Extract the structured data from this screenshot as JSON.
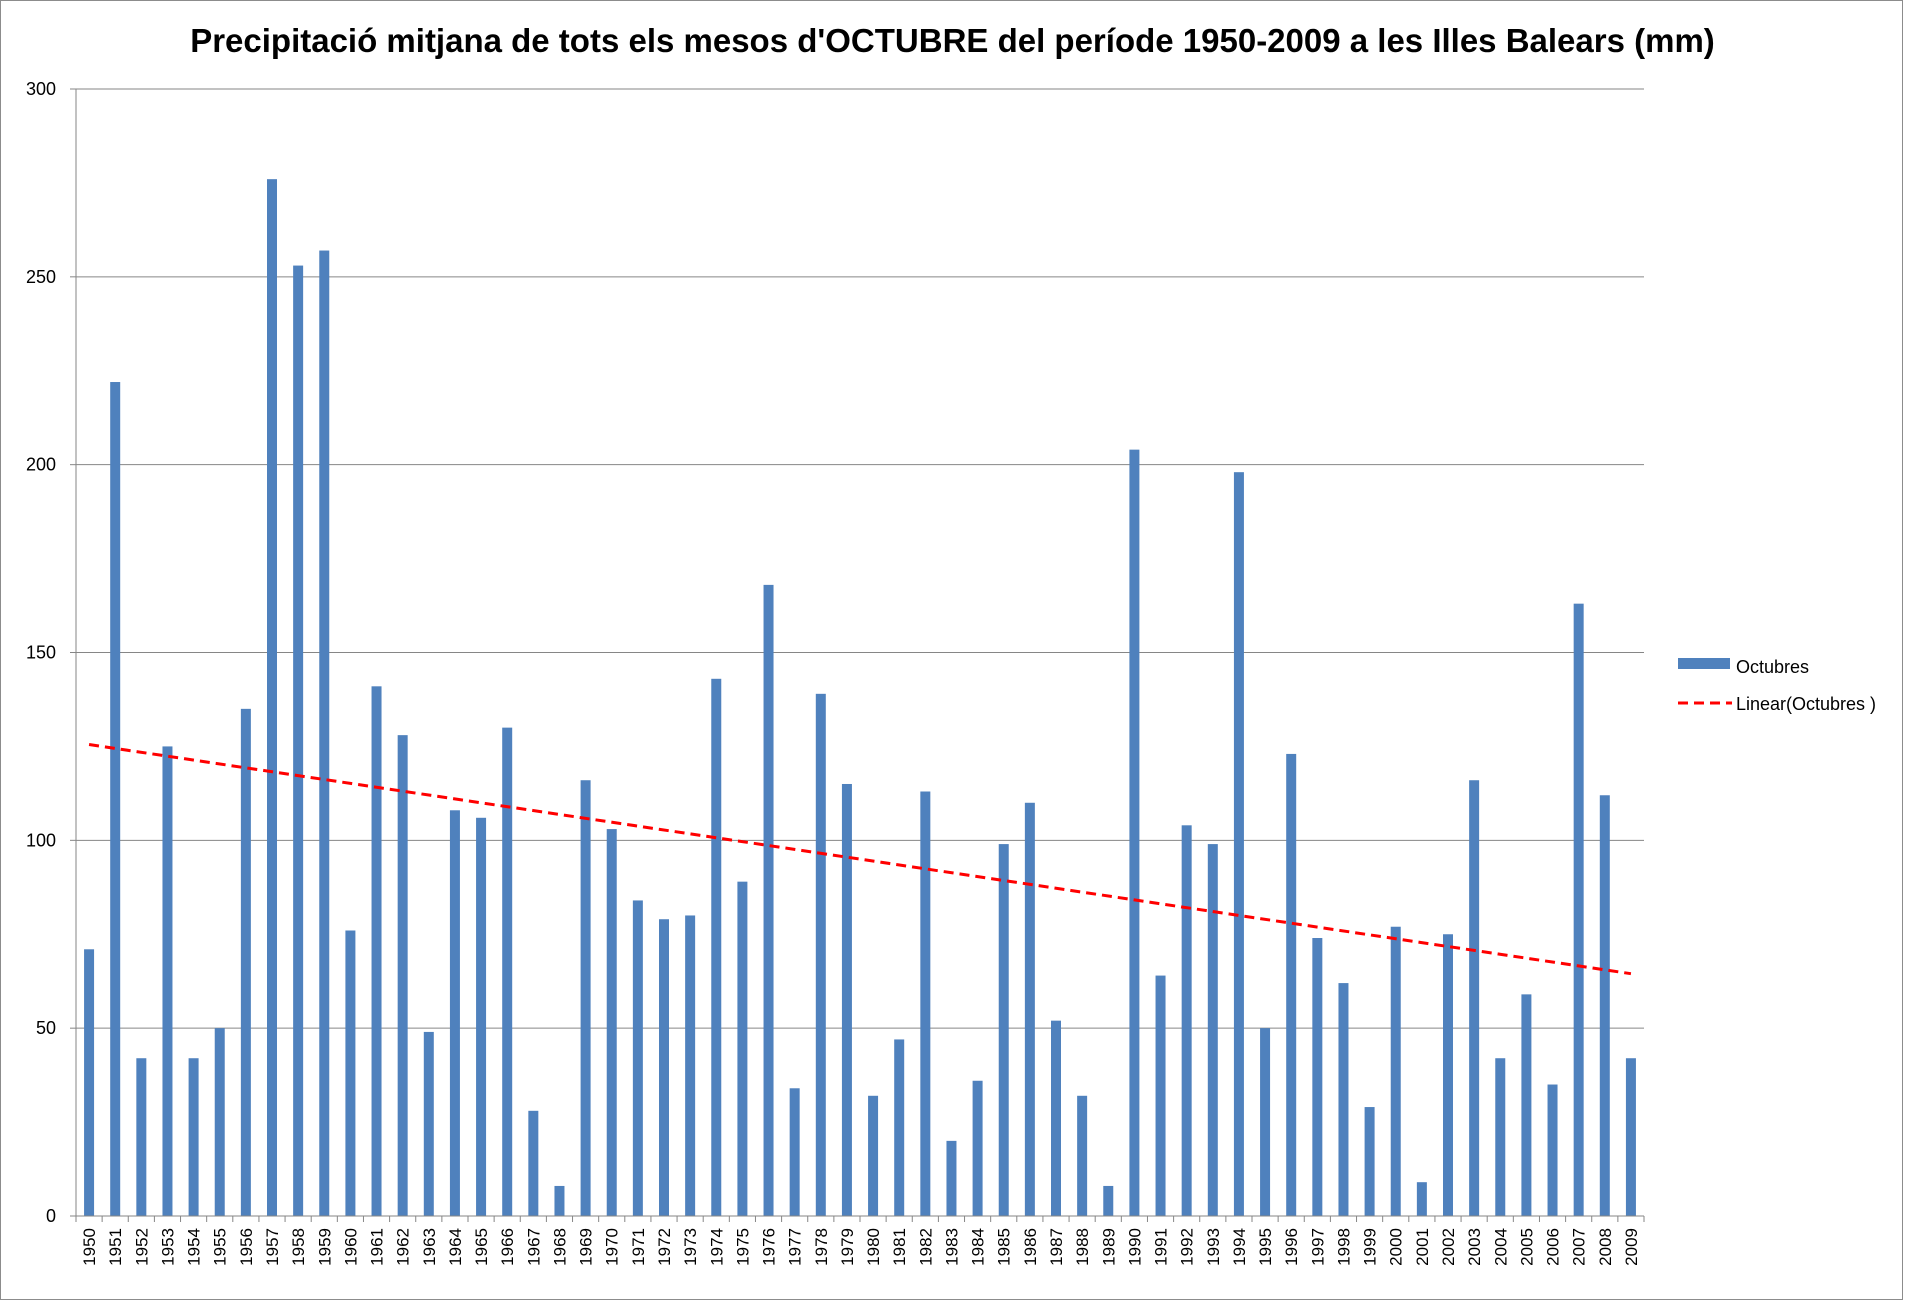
{
  "chart_data": {
    "type": "bar",
    "title": "Precipitació mitjana de tots els mesos d'OCTUBRE del període 1950-2009 a les Illes Balears (mm)",
    "xlabel": "",
    "ylabel": "",
    "ylim": [
      0,
      300
    ],
    "yticks": [
      0,
      50,
      100,
      150,
      200,
      250,
      300
    ],
    "grid": true,
    "legend_position": "right",
    "categories": [
      "1950",
      "1951",
      "1952",
      "1953",
      "1954",
      "1955",
      "1956",
      "1957",
      "1958",
      "1959",
      "1960",
      "1961",
      "1962",
      "1963",
      "1964",
      "1965",
      "1966",
      "1967",
      "1968",
      "1969",
      "1970",
      "1971",
      "1972",
      "1973",
      "1974",
      "1975",
      "1976",
      "1977",
      "1978",
      "1979",
      "1980",
      "1981",
      "1982",
      "1983",
      "1984",
      "1985",
      "1986",
      "1987",
      "1988",
      "1989",
      "1990",
      "1991",
      "1992",
      "1993",
      "1994",
      "1995",
      "1996",
      "1997",
      "1998",
      "1999",
      "2000",
      "2001",
      "2002",
      "2003",
      "2004",
      "2005",
      "2006",
      "2007",
      "2008",
      "2009"
    ],
    "series": [
      {
        "name": "Octubres",
        "color": "#4f81bd",
        "values": [
          71,
          222,
          42,
          125,
          42,
          50,
          135,
          276,
          253,
          257,
          76,
          141,
          128,
          49,
          108,
          106,
          130,
          28,
          8,
          116,
          103,
          84,
          79,
          80,
          143,
          89,
          168,
          34,
          139,
          115,
          32,
          47,
          113,
          20,
          36,
          99,
          110,
          52,
          32,
          8,
          204,
          64,
          104,
          99,
          198,
          50,
          123,
          74,
          62,
          29,
          77,
          9,
          75,
          116,
          42,
          59,
          35,
          163,
          112,
          42
        ]
      }
    ],
    "trendline": {
      "name": "Linear(Octubres )",
      "type": "linear",
      "color": "#ff0000",
      "start_value": 125.5,
      "end_value": 64.5
    }
  }
}
